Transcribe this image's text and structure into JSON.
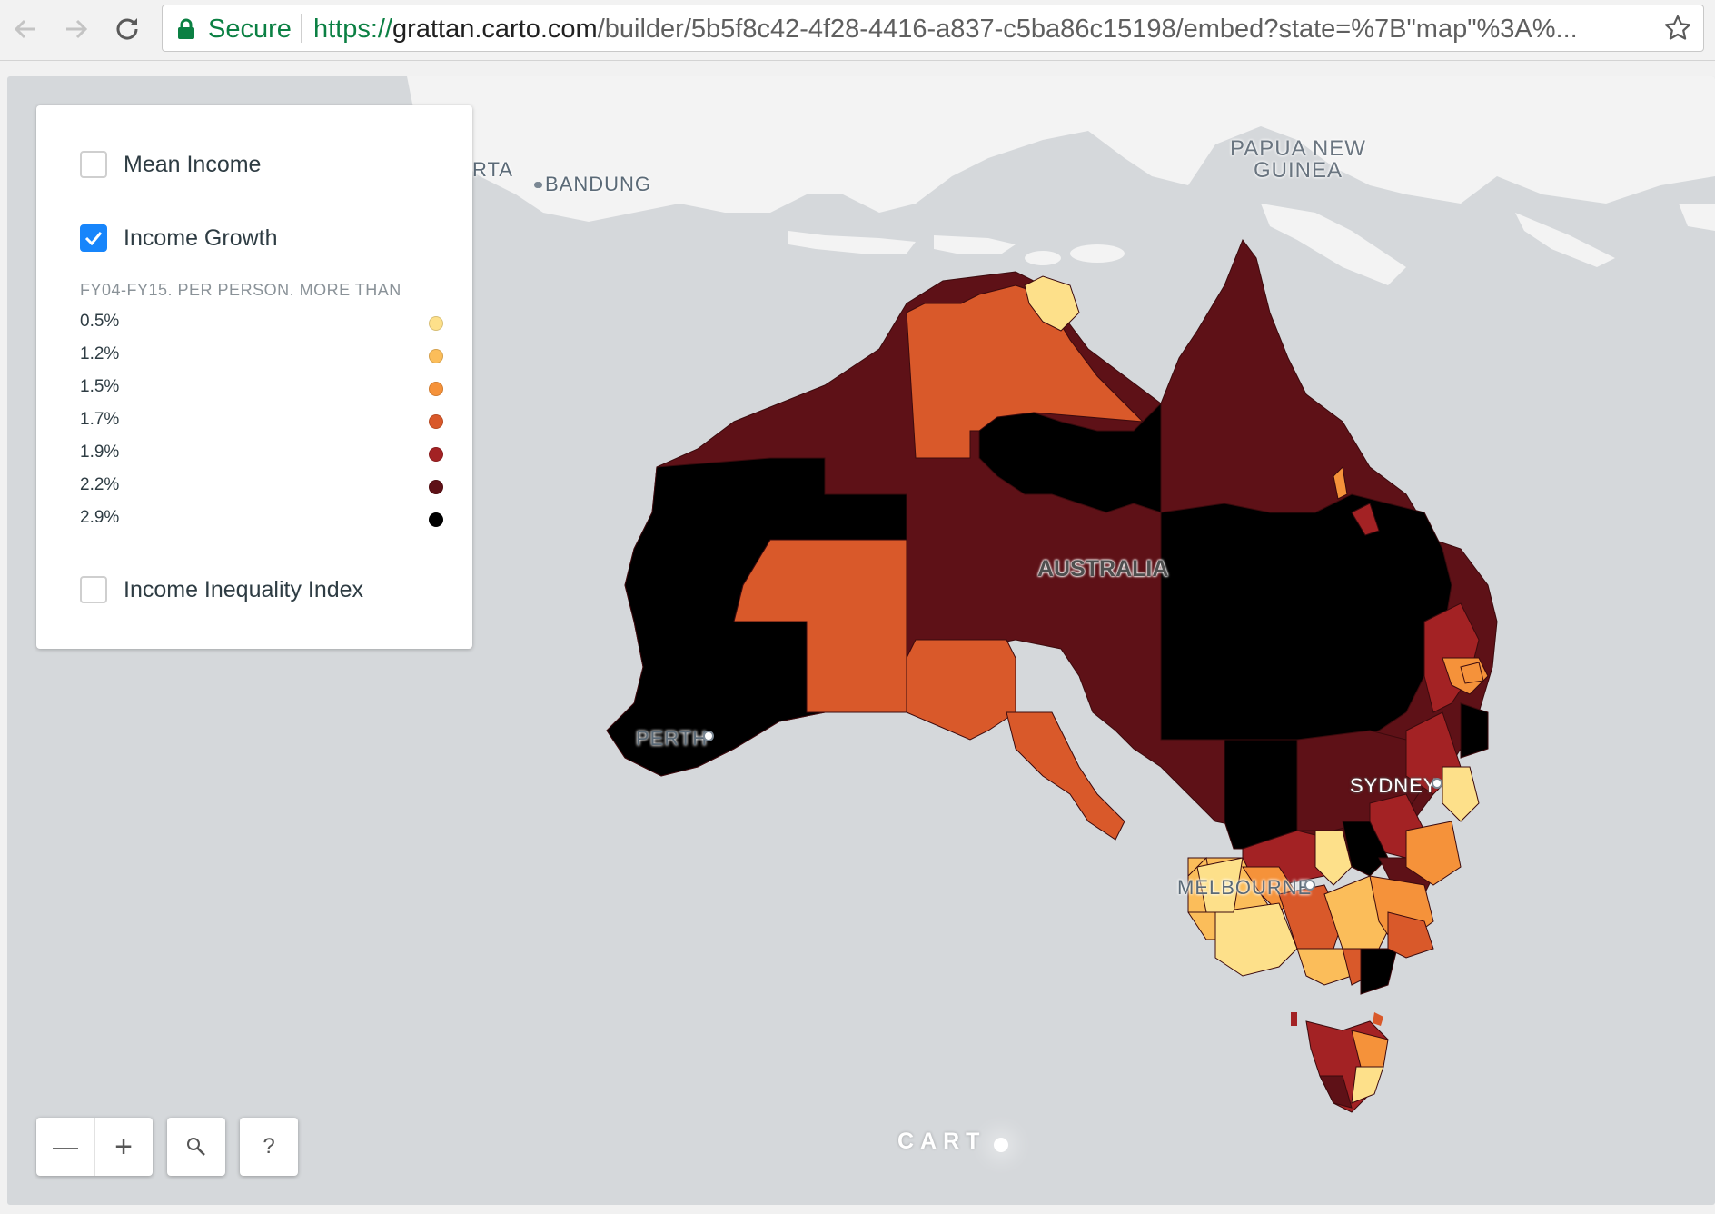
{
  "browser": {
    "secure_label": "Secure",
    "url_scheme": "https://",
    "url_domain": "grattan.carto.com",
    "url_path": "/builder/5b5f8c42-4f28-4416-a837-c5ba86c15198/embed?state=%7B\"map\"%3A%..."
  },
  "map_labels": {
    "png": "PAPUA NEW\nGUINEA",
    "png_line1": "PAPUA NEW",
    "png_line2": "GUINEA",
    "jakarta": "RTA",
    "bandung": "BANDUNG",
    "australia": "AUSTRALIA",
    "perth": "PERTH",
    "sydney": "SYDNEY",
    "melbourne": "MELBOURNE"
  },
  "layers": [
    {
      "label": "Mean Income",
      "checked": false
    },
    {
      "label": "Income Growth",
      "checked": true
    },
    {
      "label": "Income Inequality Index",
      "checked": false
    }
  ],
  "legend": {
    "title": "FY04-FY15. PER PERSON. MORE THAN",
    "items": [
      {
        "value": "0.5%",
        "color": "#fde08a"
      },
      {
        "value": "1.2%",
        "color": "#fbbd5a"
      },
      {
        "value": "1.5%",
        "color": "#f5923a"
      },
      {
        "value": "1.7%",
        "color": "#d9592a"
      },
      {
        "value": "1.9%",
        "color": "#a32224"
      },
      {
        "value": "2.2%",
        "color": "#5e1117"
      },
      {
        "value": "2.9%",
        "color": "#000000"
      }
    ]
  },
  "controls": {
    "zoom_out": "—",
    "zoom_in": "+",
    "search_icon": "search-icon",
    "help": "?"
  },
  "attribution": "CART"
}
